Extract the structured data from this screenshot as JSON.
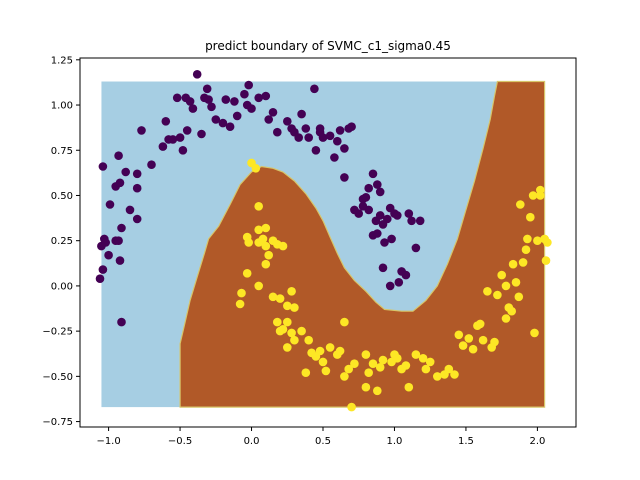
{
  "chart_data": {
    "type": "scatter",
    "title": "predict boundary of SVMC_c1_sigma0.45",
    "xlabel": "",
    "ylabel": "",
    "xlim": [
      -1.2,
      2.27
    ],
    "ylim": [
      -0.78,
      1.26
    ],
    "grid": false,
    "legend": "none",
    "x_ticks": [
      -1.0,
      -0.5,
      0.0,
      0.5,
      1.0,
      1.5,
      2.0
    ],
    "x_tick_labels": [
      "−1.0",
      "−0.5",
      "0.0",
      "0.5",
      "1.0",
      "1.5",
      "2.0"
    ],
    "y_ticks": [
      1.25,
      1.0,
      0.75,
      0.5,
      0.25,
      0.0,
      -0.25,
      -0.5,
      -0.75
    ],
    "y_tick_labels": [
      "1.25",
      "1.00",
      "0.75",
      "0.50",
      "0.25",
      "0.00",
      "−0.25",
      "−0.50",
      "−0.75"
    ],
    "colors": {
      "region_class0": "#a6cee3",
      "region_class1": "#b15928",
      "point_class0": "#440154",
      "point_class1": "#fde725"
    },
    "decision_region": {
      "extent": {
        "x": [
          -1.05,
          2.05
        ],
        "y": [
          -0.67,
          1.13
        ]
      },
      "class1_polygon": [
        [
          -0.5,
          -0.67
        ],
        [
          -0.5,
          -0.32
        ],
        [
          -0.47,
          -0.22
        ],
        [
          -0.43,
          -0.08
        ],
        [
          -0.38,
          0.05
        ],
        [
          -0.33,
          0.18
        ],
        [
          -0.3,
          0.26
        ],
        [
          -0.23,
          0.33
        ],
        [
          -0.15,
          0.45
        ],
        [
          -0.08,
          0.56
        ],
        [
          0.0,
          0.63
        ],
        [
          0.07,
          0.66
        ],
        [
          0.15,
          0.65
        ],
        [
          0.22,
          0.63
        ],
        [
          0.3,
          0.58
        ],
        [
          0.38,
          0.51
        ],
        [
          0.45,
          0.43
        ],
        [
          0.5,
          0.36
        ],
        [
          0.55,
          0.27
        ],
        [
          0.6,
          0.18
        ],
        [
          0.65,
          0.1
        ],
        [
          0.72,
          0.03
        ],
        [
          0.8,
          -0.03
        ],
        [
          0.87,
          -0.09
        ],
        [
          0.93,
          -0.13
        ],
        [
          1.05,
          -0.14
        ],
        [
          1.13,
          -0.14
        ],
        [
          1.22,
          -0.08
        ],
        [
          1.3,
          0.0
        ],
        [
          1.37,
          0.12
        ],
        [
          1.44,
          0.26
        ],
        [
          1.5,
          0.42
        ],
        [
          1.56,
          0.58
        ],
        [
          1.62,
          0.76
        ],
        [
          1.67,
          0.92
        ],
        [
          1.7,
          1.05
        ],
        [
          1.72,
          1.13
        ],
        [
          2.05,
          1.13
        ],
        [
          2.05,
          -0.67
        ]
      ]
    },
    "series": [
      {
        "class": 0,
        "color": "#440154",
        "points": [
          [
            -1.04,
            0.66
          ],
          [
            -1.05,
            0.22
          ],
          [
            -1.03,
            0.26
          ],
          [
            -1.02,
            0.24
          ],
          [
            -1.0,
            0.17
          ],
          [
            -1.06,
            0.04
          ],
          [
            -1.04,
            0.09
          ],
          [
            -0.99,
            0.45
          ],
          [
            -0.95,
            0.25
          ],
          [
            -0.95,
            0.55
          ],
          [
            -0.93,
            0.72
          ],
          [
            -0.92,
            0.57
          ],
          [
            -0.91,
            0.32
          ],
          [
            -0.92,
            0.14
          ],
          [
            -0.93,
            0.25
          ],
          [
            -0.88,
            0.63
          ],
          [
            -0.85,
            0.42
          ],
          [
            -0.8,
            0.62
          ],
          [
            -0.8,
            0.54
          ],
          [
            -0.8,
            0.37
          ],
          [
            -0.77,
            0.86
          ],
          [
            -0.7,
            0.67
          ],
          [
            -0.62,
            0.77
          ],
          [
            -0.6,
            0.91
          ],
          [
            -0.58,
            0.81
          ],
          [
            -0.55,
            0.81
          ],
          [
            -0.52,
            1.04
          ],
          [
            -0.5,
            0.82
          ],
          [
            -0.48,
            0.75
          ],
          [
            -0.46,
            1.04
          ],
          [
            -0.45,
            0.86
          ],
          [
            -0.43,
            1.02
          ],
          [
            -0.41,
            0.98
          ],
          [
            -0.38,
            1.17
          ],
          [
            -0.35,
            0.84
          ],
          [
            -0.33,
            1.04
          ],
          [
            -0.31,
            1.09
          ],
          [
            -0.3,
            1.03
          ],
          [
            -0.28,
            0.99
          ],
          [
            -0.25,
            0.92
          ],
          [
            -0.2,
            0.9
          ],
          [
            -0.18,
            1.03
          ],
          [
            -0.15,
            0.88
          ],
          [
            -0.12,
            1.02
          ],
          [
            -0.1,
            0.94
          ],
          [
            -0.05,
            1.06
          ],
          [
            -0.03,
            1.0
          ],
          [
            0.0,
            0.98
          ],
          [
            -0.02,
            1.11
          ],
          [
            0.05,
            1.04
          ],
          [
            0.1,
            1.05
          ],
          [
            0.12,
            0.92
          ],
          [
            0.15,
            0.96
          ],
          [
            0.18,
            0.85
          ],
          [
            0.25,
            0.91
          ],
          [
            0.28,
            0.87
          ],
          [
            0.3,
            0.85
          ],
          [
            0.33,
            0.82
          ],
          [
            0.35,
            0.95
          ],
          [
            0.38,
            0.87
          ],
          [
            0.4,
            0.82
          ],
          [
            0.45,
            0.75
          ],
          [
            0.48,
            0.85
          ],
          [
            0.5,
            0.82
          ],
          [
            0.55,
            0.83
          ],
          [
            0.6,
            0.8
          ],
          [
            0.62,
            0.86
          ],
          [
            0.65,
            0.6
          ],
          [
            0.68,
            0.87
          ],
          [
            0.7,
            0.88
          ],
          [
            0.75,
            0.4
          ],
          [
            0.78,
            0.48
          ],
          [
            0.8,
            0.49
          ],
          [
            0.82,
            0.42
          ],
          [
            0.85,
            0.28
          ],
          [
            0.87,
            0.36
          ],
          [
            0.88,
            0.29
          ],
          [
            0.9,
            0.39
          ],
          [
            0.92,
            0.1
          ],
          [
            0.93,
            0.24
          ],
          [
            0.95,
            0.37
          ],
          [
            0.97,
            0.43
          ],
          [
            0.98,
            0.26
          ],
          [
            1.0,
            0.4
          ],
          [
            1.02,
            0.39
          ],
          [
            1.05,
            0.08
          ],
          [
            1.08,
            0.06
          ],
          [
            1.1,
            0.4
          ],
          [
            1.12,
            0.36
          ],
          [
            0.85,
            0.62
          ],
          [
            0.88,
            0.56
          ],
          [
            0.9,
            0.52
          ],
          [
            0.82,
            0.54
          ],
          [
            0.78,
            0.44
          ],
          [
            0.72,
            0.42
          ],
          [
            0.44,
            1.09
          ],
          [
            0.48,
            0.87
          ],
          [
            0.58,
            0.71
          ],
          [
            0.65,
            0.76
          ],
          [
            0.92,
            0.34
          ],
          [
            1.18,
            0.36
          ],
          [
            1.15,
            0.21
          ],
          [
            1.03,
            0.02
          ],
          [
            0.97,
            0.0
          ],
          [
            -0.91,
            -0.2
          ]
        ]
      },
      {
        "class": 1,
        "color": "#fde725",
        "points": [
          [
            0.0,
            0.68
          ],
          [
            0.03,
            0.65
          ],
          [
            0.05,
            0.44
          ],
          [
            -0.03,
            0.27
          ],
          [
            -0.02,
            0.24
          ],
          [
            0.05,
            0.31
          ],
          [
            0.08,
            0.26
          ],
          [
            0.05,
            0.24
          ],
          [
            0.1,
            0.32
          ],
          [
            0.1,
            0.22
          ],
          [
            0.12,
            0.17
          ],
          [
            0.1,
            0.12
          ],
          [
            0.15,
            0.25
          ],
          [
            0.18,
            0.23
          ],
          [
            0.22,
            0.22
          ],
          [
            -0.03,
            0.07
          ],
          [
            0.05,
            0.0
          ],
          [
            -0.07,
            -0.04
          ],
          [
            -0.08,
            -0.1
          ],
          [
            0.15,
            -0.06
          ],
          [
            0.2,
            -0.07
          ],
          [
            0.25,
            -0.11
          ],
          [
            0.28,
            -0.03
          ],
          [
            0.3,
            -0.12
          ],
          [
            0.18,
            -0.2
          ],
          [
            0.2,
            -0.25
          ],
          [
            0.22,
            -0.24
          ],
          [
            0.25,
            -0.2
          ],
          [
            0.28,
            -0.26
          ],
          [
            0.25,
            -0.34
          ],
          [
            0.3,
            -0.3
          ],
          [
            0.35,
            -0.25
          ],
          [
            0.4,
            -0.3
          ],
          [
            0.42,
            -0.37
          ],
          [
            0.45,
            -0.39
          ],
          [
            0.48,
            -0.36
          ],
          [
            0.38,
            -0.48
          ],
          [
            0.5,
            -0.42
          ],
          [
            0.52,
            -0.47
          ],
          [
            0.55,
            -0.34
          ],
          [
            0.6,
            -0.38
          ],
          [
            0.62,
            -0.36
          ],
          [
            0.65,
            -0.2
          ],
          [
            0.68,
            -0.46
          ],
          [
            0.65,
            -0.5
          ],
          [
            0.72,
            -0.43
          ],
          [
            0.7,
            -0.67
          ],
          [
            0.8,
            -0.38
          ],
          [
            0.82,
            -0.48
          ],
          [
            0.8,
            -0.56
          ],
          [
            0.85,
            -0.43
          ],
          [
            0.88,
            -0.58
          ],
          [
            0.9,
            -0.45
          ],
          [
            0.92,
            -0.41
          ],
          [
            0.98,
            -0.42
          ],
          [
            1.0,
            -0.38
          ],
          [
            1.02,
            -0.4
          ],
          [
            1.05,
            -0.46
          ],
          [
            1.08,
            -0.44
          ],
          [
            1.1,
            -0.56
          ],
          [
            1.15,
            -0.38
          ],
          [
            1.2,
            -0.4
          ],
          [
            1.22,
            -0.46
          ],
          [
            1.25,
            -0.42
          ],
          [
            1.3,
            -0.5
          ],
          [
            1.35,
            -0.49
          ],
          [
            1.38,
            -0.46
          ],
          [
            1.42,
            -0.49
          ],
          [
            1.45,
            -0.27
          ],
          [
            1.48,
            -0.33
          ],
          [
            1.52,
            -0.29
          ],
          [
            1.55,
            -0.35
          ],
          [
            1.58,
            -0.22
          ],
          [
            1.6,
            -0.21
          ],
          [
            1.65,
            -0.03
          ],
          [
            1.68,
            -0.34
          ],
          [
            1.7,
            -0.31
          ],
          [
            1.72,
            -0.05
          ],
          [
            1.75,
            0.06
          ],
          [
            1.78,
            0.0
          ],
          [
            1.8,
            -0.12
          ],
          [
            1.82,
            -0.14
          ],
          [
            1.85,
            0.02
          ],
          [
            1.87,
            -0.06
          ],
          [
            1.9,
            0.13
          ],
          [
            1.92,
            0.2
          ],
          [
            1.93,
            0.26
          ],
          [
            1.95,
            0.38
          ],
          [
            1.97,
            0.5
          ],
          [
            1.98,
            -0.26
          ],
          [
            2.0,
            0.25
          ],
          [
            2.02,
            0.5
          ],
          [
            2.02,
            0.53
          ],
          [
            2.05,
            0.26
          ],
          [
            2.06,
            0.14
          ],
          [
            2.07,
            0.24
          ],
          [
            1.88,
            0.45
          ],
          [
            1.83,
            0.12
          ],
          [
            1.78,
            -0.18
          ],
          [
            1.62,
            -0.3
          ]
        ]
      }
    ]
  }
}
